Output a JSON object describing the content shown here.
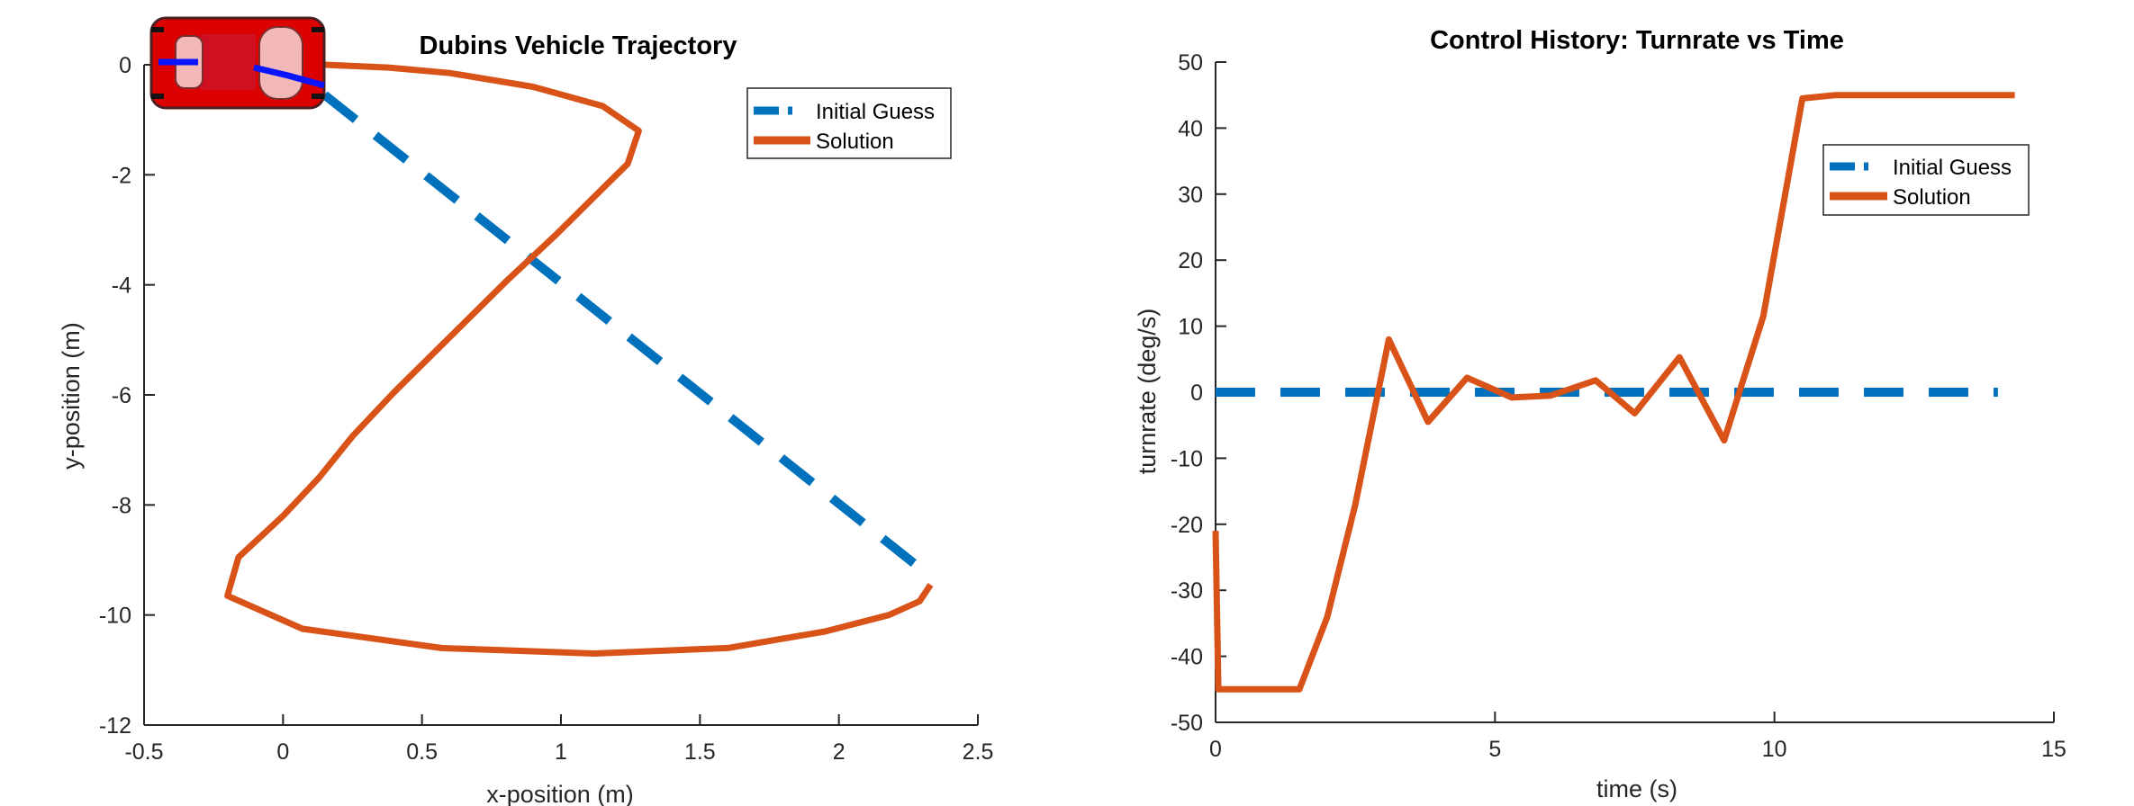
{
  "colors": {
    "initial_guess": "#0072BD",
    "solution": "#D95319",
    "axis": "#262626"
  },
  "chart_data": [
    {
      "type": "line",
      "title": "Dubins Vehicle Trajectory",
      "xlabel": "x-position (m)",
      "ylabel": "y-position (m)",
      "xlim": [
        -0.5,
        2.5
      ],
      "ylim": [
        -12,
        0
      ],
      "xticks": [
        "-0.5",
        "0",
        "0.5",
        "1",
        "1.5",
        "2",
        "2.5"
      ],
      "xtick_values": [
        -0.5,
        0,
        0.5,
        1,
        1.5,
        2,
        2.5
      ],
      "yticks": [
        "0",
        "-2",
        "-4",
        "-6",
        "-8",
        "-10",
        "-12"
      ],
      "ytick_values": [
        0,
        -2,
        -4,
        -6,
        -8,
        -10,
        -12
      ],
      "legend": {
        "position": "top-right",
        "entries": [
          "Initial Guess",
          "Solution"
        ]
      },
      "vehicle_icon": "car-icon",
      "series": [
        {
          "name": "Initial Guess",
          "style": "dashed",
          "x": [
            0.15,
            2.33
          ],
          "y": [
            -0.55,
            -9.3
          ]
        },
        {
          "name": "Solution",
          "style": "solid",
          "x": [
            0.15,
            0.38,
            0.6,
            0.9,
            1.15,
            1.28,
            1.24,
            1.12,
            0.98,
            0.8,
            0.6,
            0.4,
            0.25,
            0.13,
            0.0,
            -0.16,
            -0.2,
            0.07,
            0.57,
            1.12,
            1.6,
            1.95,
            2.18,
            2.29,
            2.33
          ],
          "y": [
            0.0,
            -0.05,
            -0.15,
            -0.4,
            -0.75,
            -1.2,
            -1.8,
            -2.4,
            -3.1,
            -3.95,
            -4.95,
            -5.95,
            -6.75,
            -7.5,
            -8.2,
            -8.95,
            -9.65,
            -10.25,
            -10.6,
            -10.7,
            -10.6,
            -10.3,
            -10.0,
            -9.75,
            -9.45
          ]
        }
      ]
    },
    {
      "type": "line",
      "title": "Control History: Turnrate vs Time",
      "xlabel": "time (s)",
      "ylabel": "turnrate (deg/s)",
      "xlim": [
        0,
        15
      ],
      "ylim": [
        -50,
        50
      ],
      "xticks": [
        "0",
        "5",
        "10",
        "15"
      ],
      "xtick_values": [
        0,
        5,
        10,
        15
      ],
      "yticks": [
        "50",
        "40",
        "30",
        "20",
        "10",
        "0",
        "-10",
        "-20",
        "-30",
        "-40",
        "-50"
      ],
      "ytick_values": [
        50,
        40,
        30,
        20,
        10,
        0,
        -10,
        -20,
        -30,
        -40,
        -50
      ],
      "legend": {
        "position": "top-right",
        "entries": [
          "Initial Guess",
          "Solution"
        ]
      },
      "series": [
        {
          "name": "Initial Guess",
          "style": "dashed",
          "x": [
            0,
            14
          ],
          "y": [
            0,
            0
          ]
        },
        {
          "name": "Solution",
          "style": "solid",
          "x": [
            0,
            0.05,
            1.5,
            2.0,
            2.5,
            3.1,
            3.8,
            4.5,
            5.3,
            6.0,
            6.8,
            7.5,
            8.3,
            9.1,
            9.8,
            10.5,
            11.1,
            14.3
          ],
          "y": [
            -21,
            -45,
            -45,
            -34,
            -17,
            8,
            -4.5,
            2.2,
            -0.8,
            -0.5,
            1.8,
            -3.2,
            5.3,
            -7.3,
            11.5,
            44.5,
            45,
            45
          ]
        }
      ]
    }
  ]
}
